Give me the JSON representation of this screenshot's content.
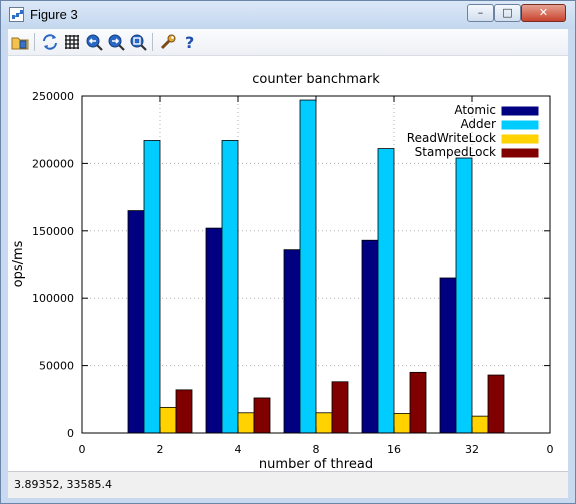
{
  "window": {
    "title": "Figure 3",
    "minimize_label": "–",
    "maximize_label": "□",
    "close_label": "✕"
  },
  "toolbar": {
    "tools": [
      {
        "name": "load-icon"
      },
      {
        "name": "refresh-icon"
      },
      {
        "name": "grid-icon"
      },
      {
        "name": "zoom-previous-icon"
      },
      {
        "name": "zoom-next-icon"
      },
      {
        "name": "zoom-autoscale-icon"
      },
      {
        "name": "settings-icon"
      },
      {
        "name": "help-icon"
      }
    ]
  },
  "status": {
    "coordinates": "3.89352,  33585.4"
  },
  "chart_data": {
    "type": "bar",
    "title": "counter banchmark",
    "xlabel": "number of thread",
    "ylabel": "ops/ms",
    "ylim": [
      0,
      250000
    ],
    "yticks": [
      0,
      50000,
      100000,
      150000,
      200000,
      250000
    ],
    "ytick_labels": [
      "0",
      "50000",
      "100000",
      "150000",
      "200000",
      "250000"
    ],
    "xtick_labels": [
      "0",
      "2",
      "4",
      "8",
      "16",
      "32",
      "0"
    ],
    "categories": [
      "2",
      "4",
      "8",
      "16",
      "32"
    ],
    "grid": true,
    "legend_position": "top-right",
    "series": [
      {
        "name": "Atomic",
        "color": "#000080",
        "values": [
          165000,
          152000,
          136000,
          143000,
          115000
        ]
      },
      {
        "name": "Adder",
        "color": "#00ccff",
        "values": [
          217000,
          217000,
          247000,
          211000,
          204000
        ]
      },
      {
        "name": "ReadWriteLock",
        "color": "#ffd200",
        "values": [
          19000,
          15000,
          15000,
          14500,
          12500
        ]
      },
      {
        "name": "StampedLock",
        "color": "#800000",
        "values": [
          32000,
          26000,
          38000,
          45000,
          43000
        ]
      }
    ]
  }
}
